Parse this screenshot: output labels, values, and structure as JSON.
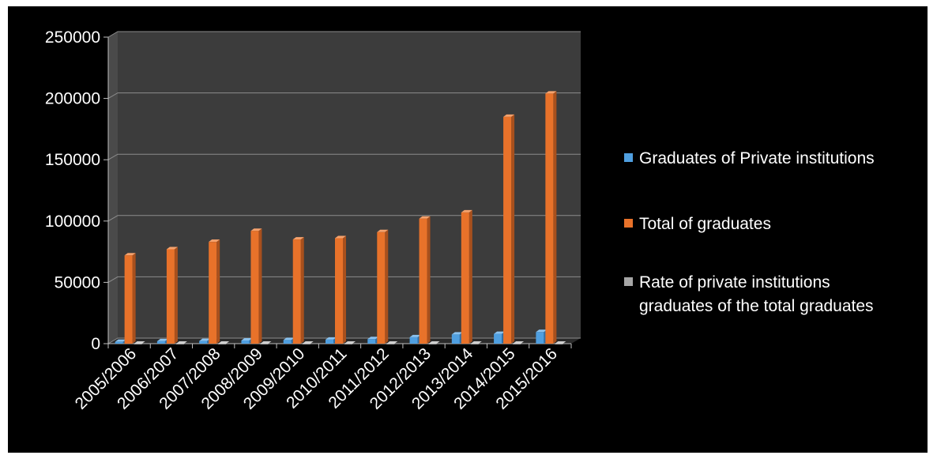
{
  "chart_data": {
    "type": "bar",
    "categories": [
      "2005/2006",
      "2006/2007",
      "2007/2008",
      "2008/2009",
      "2009/2010",
      "2010/2011",
      "2011/2012",
      "2012/2013",
      "2013/2014",
      "2014/2015",
      "2015/2016"
    ],
    "series": [
      {
        "name": "Graduates of Private institutions",
        "color": "#4f9fe0",
        "values": [
          1500,
          2000,
          2200,
          2600,
          3000,
          3300,
          3700,
          5200,
          7500,
          8000,
          9500
        ]
      },
      {
        "name": "Total of graduates",
        "color": "#e8722a",
        "values": [
          72000,
          77000,
          83000,
          92000,
          85000,
          86000,
          91000,
          102000,
          107000,
          185000,
          204000
        ]
      },
      {
        "name": "Rate of private institutions graduates of the total graduates",
        "color": "#a6a6a6",
        "values": [
          2,
          3,
          3,
          3,
          4,
          4,
          4,
          5,
          7,
          4,
          5
        ]
      }
    ],
    "legend_lines": [
      [
        "Graduates of Private institutions"
      ],
      [
        "Total of graduates"
      ],
      [
        "Rate of private institutions",
        "graduates of the total graduates"
      ]
    ],
    "ylim": [
      0,
      250000
    ],
    "yticks": [
      0,
      50000,
      100000,
      150000,
      200000,
      250000
    ],
    "title": "",
    "xlabel": "",
    "ylabel": "",
    "grid": true,
    "legend_position": "right",
    "style": "3d-column"
  }
}
